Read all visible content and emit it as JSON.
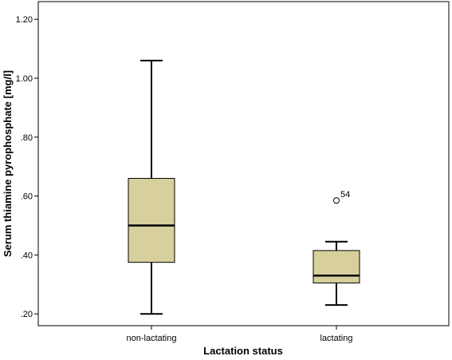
{
  "chart_data": {
    "type": "boxplot",
    "xlabel": "Lactation status",
    "ylabel": "Serum thiamine pyrophosphate [mg/l]",
    "ylim": [
      0.16,
      1.26
    ],
    "yticks": [
      0.2,
      0.4,
      0.6,
      0.8,
      1.0,
      1.2
    ],
    "ytick_labels": [
      ".20",
      ".40",
      ".60",
      ".80",
      "1.00",
      "1.20"
    ],
    "categories": [
      "non-lactating",
      "lactating"
    ],
    "boxes": [
      {
        "category": "non-lactating",
        "whisker_low": 0.2,
        "q1": 0.375,
        "median": 0.5,
        "q3": 0.66,
        "whisker_high": 1.06,
        "outliers": []
      },
      {
        "category": "lactating",
        "whisker_low": 0.23,
        "q1": 0.305,
        "median": 0.33,
        "q3": 0.415,
        "whisker_high": 0.445,
        "outliers": [
          {
            "value": 0.585,
            "label": "54"
          }
        ]
      }
    ],
    "grid": false,
    "box_color": "#d8d09c",
    "frame_color": "#000000"
  }
}
